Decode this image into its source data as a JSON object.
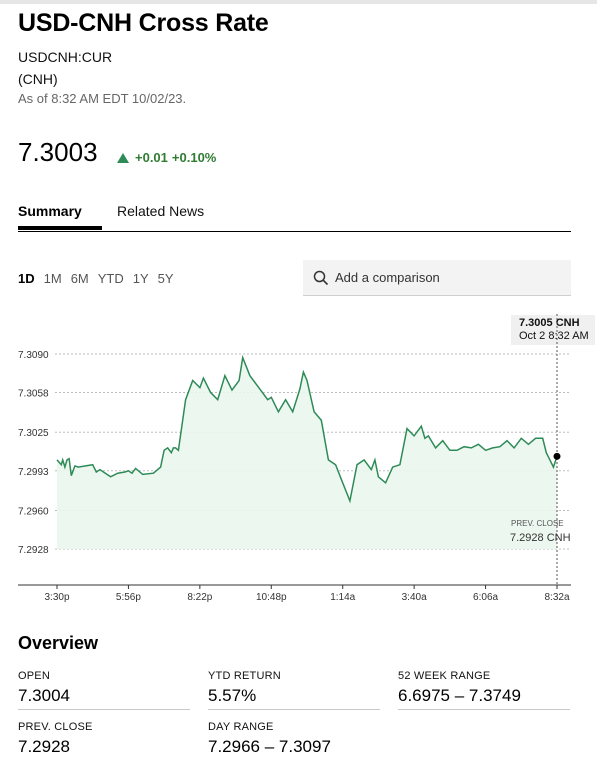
{
  "header": {
    "title": "USD-CNH Cross Rate",
    "ticker": "USDCNH:CUR",
    "currency": "(CNH)",
    "as_of": "As of 8:32 AM EDT 10/02/23.",
    "price": "7.3003",
    "change": "+0.01",
    "change_pct": "+0.10%"
  },
  "tabs": [
    "Summary",
    "Related News"
  ],
  "ranges": [
    "1D",
    "1M",
    "6M",
    "YTD",
    "1Y",
    "5Y"
  ],
  "compare": {
    "placeholder": "Add a comparison"
  },
  "tooltip": {
    "value": "7.3005 CNH",
    "time": "Oct 2 8:32 AM"
  },
  "prev_close_marker": {
    "label": "PREV. CLOSE",
    "value": "7.2928 CNH"
  },
  "colors": {
    "line": "#2e8b57",
    "positive": "#2e7d32",
    "fill": "#eaf6ee"
  },
  "chart_data": {
    "type": "area",
    "y_ticks": [
      "7.3090",
      "7.3058",
      "7.3025",
      "7.2993",
      "7.2960",
      "7.2928"
    ],
    "ylim": [
      7.2928,
      7.309
    ],
    "x_ticks": [
      "3:30p",
      "5:56p",
      "8:22p",
      "10:48p",
      "1:14a",
      "3:40a",
      "6:06a",
      "8:32a"
    ],
    "x": [
      0,
      0.06,
      0.08,
      0.11,
      0.14,
      0.17,
      0.2,
      0.25,
      0.3,
      0.4,
      0.5,
      0.55,
      0.6,
      0.75,
      0.85,
      0.95,
      1.0,
      1.05,
      1.1,
      1.2,
      1.35,
      1.45,
      1.5,
      1.55,
      1.6,
      1.63,
      1.66,
      1.7,
      1.8,
      1.9,
      2.0,
      2.05,
      2.15,
      2.25,
      2.35,
      2.45,
      2.55,
      2.6,
      2.7,
      2.85,
      2.95,
      3.0,
      3.1,
      3.2,
      3.3,
      3.4,
      3.45,
      3.5,
      3.6,
      3.7,
      3.8,
      3.9,
      4.0,
      4.1,
      4.2,
      4.3,
      4.4,
      4.45,
      4.5,
      4.6,
      4.7,
      4.8,
      4.9,
      5.0,
      5.1,
      5.15,
      5.2,
      5.3,
      5.4,
      5.5,
      5.6,
      5.7,
      5.8,
      5.9,
      6.0,
      6.1,
      6.2,
      6.3,
      6.4,
      6.5,
      6.6,
      6.7,
      6.8,
      6.85,
      6.9,
      6.95,
      7.0
    ],
    "y": [
      7.3002,
      7.2998,
      7.3002,
      7.2996,
      7.3002,
      7.3003,
      7.2989,
      7.2997,
      7.2996,
      7.2997,
      7.2998,
      7.2992,
      7.2994,
      7.2988,
      7.2991,
      7.2992,
      7.2993,
      7.2991,
      7.2995,
      7.299,
      7.2991,
      7.2996,
      7.301,
      7.3012,
      7.3008,
      7.3012,
      7.3012,
      7.301,
      7.3052,
      7.3068,
      7.3062,
      7.307,
      7.3058,
      7.3052,
      7.3072,
      7.306,
      7.3068,
      7.3087,
      7.3072,
      7.306,
      7.3052,
      7.3054,
      7.3042,
      7.3052,
      7.3042,
      7.3061,
      7.3075,
      7.3068,
      7.3042,
      7.3035,
      7.3002,
      7.2998,
      7.2983,
      7.2968,
      7.2998,
      7.3002,
      7.2994,
      7.3002,
      7.2988,
      7.2983,
      7.2996,
      7.2998,
      7.3028,
      7.3022,
      7.303,
      7.302,
      7.3022,
      7.3012,
      7.3018,
      7.301,
      7.301,
      7.3013,
      7.3012,
      7.3015,
      7.301,
      7.3012,
      7.3013,
      7.3018,
      7.3012,
      7.302,
      7.3015,
      7.302,
      7.302,
      7.3008,
      7.3002,
      7.2996,
      7.3005
    ]
  },
  "overview": {
    "title": "Overview",
    "stats": [
      {
        "label": "OPEN",
        "value": "7.3004"
      },
      {
        "label": "YTD RETURN",
        "value": "5.57%"
      },
      {
        "label": "52 WEEK RANGE",
        "value": "6.6975 – 7.3749"
      },
      {
        "label": "PREV. CLOSE",
        "value": "7.2928"
      },
      {
        "label": "DAY RANGE",
        "value": "7.2966 – 7.3097"
      }
    ]
  }
}
